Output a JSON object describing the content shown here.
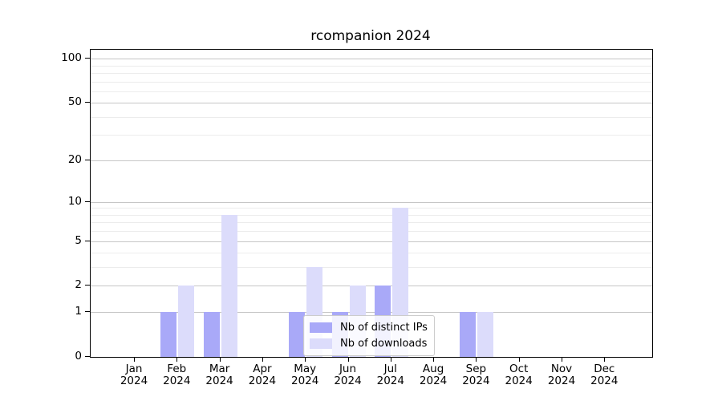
{
  "title": "rcompanion 2024",
  "chart_data": {
    "type": "bar",
    "title": "rcompanion 2024",
    "categories": [
      "Jan",
      "Feb",
      "Mar",
      "Apr",
      "May",
      "Jun",
      "Jul",
      "Aug",
      "Sep",
      "Oct",
      "Nov",
      "Dec"
    ],
    "year_label": "2024",
    "series": [
      {
        "name": "Nb of distinct IPs",
        "color": "#a9a9f8",
        "values": [
          0,
          1,
          1,
          0,
          1,
          1,
          2,
          0,
          1,
          0,
          0,
          0
        ]
      },
      {
        "name": "Nb of downloads",
        "color": "#dcdcfb",
        "values": [
          0,
          2,
          8,
          0,
          3,
          2,
          9,
          0,
          1,
          0,
          0,
          0
        ]
      }
    ],
    "xlabel": "",
    "ylabel": "",
    "y_axis": {
      "scale": "log1p",
      "ticks": [
        0,
        1,
        2,
        5,
        10,
        20,
        50,
        100
      ],
      "minor_gridlines": [
        3,
        4,
        6,
        7,
        8,
        9,
        30,
        40,
        60,
        70,
        80,
        90
      ],
      "max": 115
    },
    "grid": true,
    "legend_position": "inside-lower-center-right"
  },
  "colors": {
    "distinct_ips": "#a9a9f8",
    "downloads": "#dcdcfb",
    "grid_major": "#c6c6c6",
    "grid_minor": "#ececec",
    "axis": "#000000",
    "background": "#ffffff",
    "legend_border": "#cccccc"
  }
}
